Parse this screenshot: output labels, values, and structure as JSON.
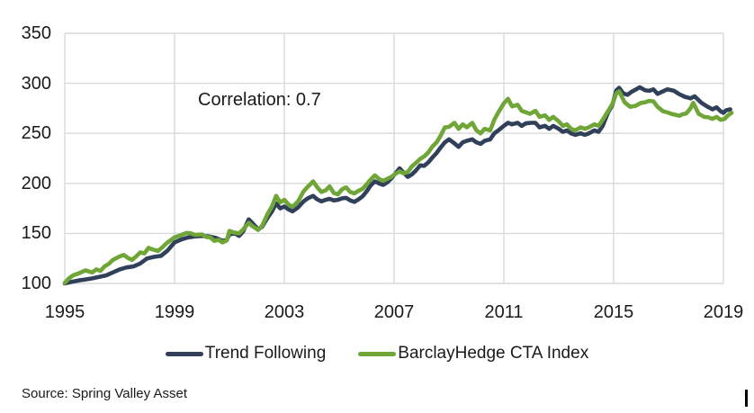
{
  "annotation": {
    "text": "Correlation: 0.7"
  },
  "source": {
    "text": "Source: Spring Valley Asset"
  },
  "legend": [
    {
      "label": "Trend Following",
      "color": "#31405a"
    },
    {
      "label": "BarclayHedge CTA Index",
      "color": "#6fa637"
    }
  ],
  "colors": {
    "background": "#ffffff",
    "gridline": "#d9d9d9",
    "text": "#1a1a1a",
    "navy_series": "#31405a",
    "green_series": "#6fa637"
  },
  "chart_data": {
    "type": "line",
    "title": "",
    "xlabel": "",
    "ylabel": "",
    "annotation": "Correlation: 0.7",
    "x_ticks": [
      1995,
      1999,
      2003,
      2007,
      2011,
      2015,
      2019
    ],
    "y_ticks": [
      100,
      150,
      200,
      250,
      300,
      350
    ],
    "xlim": [
      1995,
      2019
    ],
    "ylim": [
      100,
      350
    ],
    "grid": true,
    "legend_position": "bottom",
    "series": [
      {
        "name": "Trend Following",
        "color": "#31405a",
        "points": [
          [
            1995,
            100
          ],
          [
            1995.25,
            101.5
          ],
          [
            1995.5,
            103
          ],
          [
            1995.75,
            104
          ],
          [
            1996,
            105
          ],
          [
            1996.25,
            106.5
          ],
          [
            1996.5,
            108
          ],
          [
            1996.75,
            111
          ],
          [
            1997,
            114
          ],
          [
            1997.25,
            116
          ],
          [
            1997.5,
            117
          ],
          [
            1997.75,
            120
          ],
          [
            1998,
            125
          ],
          [
            1998.25,
            126.5
          ],
          [
            1998.5,
            127.5
          ],
          [
            1998.75,
            133
          ],
          [
            1999,
            141
          ],
          [
            1999.25,
            144
          ],
          [
            1999.5,
            146
          ],
          [
            1999.75,
            147
          ],
          [
            2000,
            147.5
          ],
          [
            2000.25,
            147
          ],
          [
            2000.5,
            145.5
          ],
          [
            2000.75,
            142.5
          ],
          [
            2000.9,
            143.5
          ],
          [
            2001,
            149
          ],
          [
            2001.2,
            150
          ],
          [
            2001.35,
            147.5
          ],
          [
            2001.5,
            152
          ],
          [
            2001.7,
            164
          ],
          [
            2001.85,
            160
          ],
          [
            2002.05,
            154
          ],
          [
            2002.2,
            157
          ],
          [
            2002.4,
            166
          ],
          [
            2002.55,
            172
          ],
          [
            2002.7,
            180
          ],
          [
            2002.85,
            175
          ],
          [
            2003,
            177
          ],
          [
            2003.15,
            174
          ],
          [
            2003.3,
            172
          ],
          [
            2003.5,
            176
          ],
          [
            2003.7,
            182
          ],
          [
            2003.85,
            185
          ],
          [
            2004.05,
            187.5
          ],
          [
            2004.2,
            184
          ],
          [
            2004.35,
            182
          ],
          [
            2004.5,
            183.5
          ],
          [
            2004.65,
            184.5
          ],
          [
            2004.8,
            183
          ],
          [
            2004.95,
            183.5
          ],
          [
            2005.1,
            185
          ],
          [
            2005.25,
            185.5
          ],
          [
            2005.4,
            183
          ],
          [
            2005.55,
            181.5
          ],
          [
            2005.7,
            184
          ],
          [
            2005.85,
            187
          ],
          [
            2006,
            192
          ],
          [
            2006.15,
            198
          ],
          [
            2006.3,
            202
          ],
          [
            2006.45,
            200
          ],
          [
            2006.6,
            198.5
          ],
          [
            2006.75,
            201
          ],
          [
            2006.9,
            205
          ],
          [
            2007.05,
            210
          ],
          [
            2007.2,
            215
          ],
          [
            2007.35,
            210.5
          ],
          [
            2007.5,
            206.5
          ],
          [
            2007.65,
            209
          ],
          [
            2007.8,
            213
          ],
          [
            2007.95,
            218
          ],
          [
            2008.1,
            217.5
          ],
          [
            2008.25,
            221
          ],
          [
            2008.4,
            226
          ],
          [
            2008.55,
            230.5
          ],
          [
            2008.7,
            236
          ],
          [
            2008.85,
            241
          ],
          [
            2009,
            244
          ],
          [
            2009.15,
            241
          ],
          [
            2009.35,
            236.5
          ],
          [
            2009.5,
            241
          ],
          [
            2009.65,
            242.5
          ],
          [
            2009.85,
            244
          ],
          [
            2010,
            241
          ],
          [
            2010.15,
            239.5
          ],
          [
            2010.3,
            242.5
          ],
          [
            2010.5,
            244
          ],
          [
            2010.65,
            250
          ],
          [
            2010.8,
            253
          ],
          [
            2011,
            257.5
          ],
          [
            2011.15,
            260.5
          ],
          [
            2011.3,
            259
          ],
          [
            2011.5,
            260.5
          ],
          [
            2011.65,
            257.5
          ],
          [
            2011.8,
            260
          ],
          [
            2012,
            260.5
          ],
          [
            2012.15,
            260.5
          ],
          [
            2012.3,
            256
          ],
          [
            2012.5,
            257.5
          ],
          [
            2012.65,
            254.5
          ],
          [
            2012.8,
            257.5
          ],
          [
            2013,
            254.5
          ],
          [
            2013.15,
            251.5
          ],
          [
            2013.3,
            253
          ],
          [
            2013.45,
            250
          ],
          [
            2013.6,
            248.5
          ],
          [
            2013.8,
            250
          ],
          [
            2013.95,
            248.5
          ],
          [
            2014.1,
            250
          ],
          [
            2014.3,
            253
          ],
          [
            2014.45,
            251.5
          ],
          [
            2014.6,
            257.5
          ],
          [
            2014.8,
            271
          ],
          [
            2014.95,
            278
          ],
          [
            2015.1,
            293
          ],
          [
            2015.2,
            295.5
          ],
          [
            2015.35,
            290
          ],
          [
            2015.5,
            288.5
          ],
          [
            2015.65,
            291.5
          ],
          [
            2015.95,
            296
          ],
          [
            2016.15,
            293
          ],
          [
            2016.3,
            292.5
          ],
          [
            2016.45,
            294
          ],
          [
            2016.6,
            289.5
          ],
          [
            2016.8,
            292
          ],
          [
            2016.95,
            294
          ],
          [
            2017.2,
            292.5
          ],
          [
            2017.4,
            289
          ],
          [
            2017.6,
            286.5
          ],
          [
            2017.8,
            285
          ],
          [
            2017.95,
            287
          ],
          [
            2018.2,
            280.5
          ],
          [
            2018.4,
            277
          ],
          [
            2018.6,
            274
          ],
          [
            2018.75,
            276
          ],
          [
            2018.9,
            272
          ],
          [
            2019,
            270.5
          ],
          [
            2019.1,
            273
          ],
          [
            2019.25,
            274
          ]
        ]
      },
      {
        "name": "BarclayHedge CTA Index",
        "color": "#6fa637",
        "points": [
          [
            1995,
            100.5
          ],
          [
            1995.15,
            105
          ],
          [
            1995.3,
            108
          ],
          [
            1995.5,
            110
          ],
          [
            1995.75,
            113
          ],
          [
            1996,
            111
          ],
          [
            1996.15,
            114
          ],
          [
            1996.3,
            112.5
          ],
          [
            1996.45,
            117
          ],
          [
            1996.6,
            119.5
          ],
          [
            1996.75,
            123.5
          ],
          [
            1997,
            127
          ],
          [
            1997.15,
            128.5
          ],
          [
            1997.3,
            125.5
          ],
          [
            1997.45,
            123.5
          ],
          [
            1997.6,
            127
          ],
          [
            1997.75,
            131
          ],
          [
            1997.9,
            130
          ],
          [
            1998.05,
            135.5
          ],
          [
            1998.2,
            134
          ],
          [
            1998.4,
            132.5
          ],
          [
            1998.55,
            136
          ],
          [
            1998.7,
            140
          ],
          [
            1998.85,
            143
          ],
          [
            1999,
            146
          ],
          [
            1999.15,
            147.5
          ],
          [
            1999.3,
            149
          ],
          [
            1999.45,
            150.5
          ],
          [
            1999.6,
            150
          ],
          [
            1999.75,
            148.5
          ],
          [
            2000,
            149
          ],
          [
            2000.15,
            146.5
          ],
          [
            2000.3,
            146
          ],
          [
            2000.45,
            142.5
          ],
          [
            2000.6,
            143.5
          ],
          [
            2000.75,
            141
          ],
          [
            2000.9,
            143
          ],
          [
            2001,
            152.5
          ],
          [
            2001.15,
            151
          ],
          [
            2001.35,
            150
          ],
          [
            2001.5,
            154
          ],
          [
            2001.7,
            160.5
          ],
          [
            2001.85,
            157
          ],
          [
            2002.05,
            153.5
          ],
          [
            2002.2,
            158
          ],
          [
            2002.4,
            170
          ],
          [
            2002.55,
            177
          ],
          [
            2002.7,
            187.5
          ],
          [
            2002.85,
            181
          ],
          [
            2003,
            183.5
          ],
          [
            2003.15,
            179
          ],
          [
            2003.3,
            176.5
          ],
          [
            2003.5,
            182
          ],
          [
            2003.7,
            192
          ],
          [
            2003.85,
            196.5
          ],
          [
            2004.05,
            202
          ],
          [
            2004.2,
            196
          ],
          [
            2004.35,
            191.5
          ],
          [
            2004.5,
            193
          ],
          [
            2004.65,
            197
          ],
          [
            2004.8,
            190.5
          ],
          [
            2004.95,
            189
          ],
          [
            2005.1,
            194
          ],
          [
            2005.25,
            196
          ],
          [
            2005.4,
            191.5
          ],
          [
            2005.55,
            190
          ],
          [
            2005.7,
            192.5
          ],
          [
            2005.85,
            194.5
          ],
          [
            2006,
            199
          ],
          [
            2006.15,
            204
          ],
          [
            2006.3,
            208
          ],
          [
            2006.45,
            204.5
          ],
          [
            2006.6,
            202.5
          ],
          [
            2006.75,
            204.5
          ],
          [
            2006.9,
            206.5
          ],
          [
            2007.05,
            209.5
          ],
          [
            2007.2,
            212
          ],
          [
            2007.35,
            210
          ],
          [
            2007.5,
            211.5
          ],
          [
            2007.65,
            217
          ],
          [
            2007.8,
            220.5
          ],
          [
            2007.95,
            224.5
          ],
          [
            2008.1,
            227
          ],
          [
            2008.25,
            231
          ],
          [
            2008.4,
            237
          ],
          [
            2008.55,
            241
          ],
          [
            2008.7,
            248
          ],
          [
            2008.85,
            256
          ],
          [
            2009,
            256.5
          ],
          [
            2009.2,
            260.5
          ],
          [
            2009.35,
            254.5
          ],
          [
            2009.5,
            259
          ],
          [
            2009.65,
            256
          ],
          [
            2009.85,
            260.5
          ],
          [
            2010,
            253
          ],
          [
            2010.15,
            250
          ],
          [
            2010.3,
            254.5
          ],
          [
            2010.5,
            253
          ],
          [
            2010.65,
            263.5
          ],
          [
            2010.8,
            271
          ],
          [
            2011,
            280
          ],
          [
            2011.15,
            284.5
          ],
          [
            2011.3,
            277
          ],
          [
            2011.5,
            278.5
          ],
          [
            2011.65,
            272.5
          ],
          [
            2011.8,
            271
          ],
          [
            2011.95,
            269.5
          ],
          [
            2012.15,
            272.5
          ],
          [
            2012.3,
            266.5
          ],
          [
            2012.5,
            268
          ],
          [
            2012.65,
            263.5
          ],
          [
            2012.8,
            266.5
          ],
          [
            2013,
            262
          ],
          [
            2013.15,
            257.5
          ],
          [
            2013.3,
            259
          ],
          [
            2013.45,
            254.5
          ],
          [
            2013.6,
            253
          ],
          [
            2013.8,
            256
          ],
          [
            2013.95,
            254.5
          ],
          [
            2014.1,
            256
          ],
          [
            2014.3,
            259
          ],
          [
            2014.45,
            257.5
          ],
          [
            2014.6,
            263.5
          ],
          [
            2014.8,
            272.5
          ],
          [
            2014.95,
            279
          ],
          [
            2015.1,
            290
          ],
          [
            2015.2,
            292
          ],
          [
            2015.4,
            281
          ],
          [
            2015.6,
            276.5
          ],
          [
            2015.8,
            277.5
          ],
          [
            2016,
            280.5
          ],
          [
            2016.15,
            281
          ],
          [
            2016.3,
            282.5
          ],
          [
            2016.45,
            282
          ],
          [
            2016.6,
            276.5
          ],
          [
            2016.8,
            272
          ],
          [
            2016.95,
            271
          ],
          [
            2017.1,
            269.5
          ],
          [
            2017.25,
            268.5
          ],
          [
            2017.4,
            267.5
          ],
          [
            2017.5,
            269
          ],
          [
            2017.65,
            270
          ],
          [
            2017.8,
            275
          ],
          [
            2017.9,
            280.5
          ],
          [
            2018.1,
            269.5
          ],
          [
            2018.3,
            266.5
          ],
          [
            2018.45,
            266
          ],
          [
            2018.6,
            264.5
          ],
          [
            2018.75,
            266.5
          ],
          [
            2018.9,
            263.5
          ],
          [
            2019.05,
            264.5
          ],
          [
            2019.15,
            267.5
          ],
          [
            2019.3,
            270.5
          ]
        ]
      }
    ]
  }
}
